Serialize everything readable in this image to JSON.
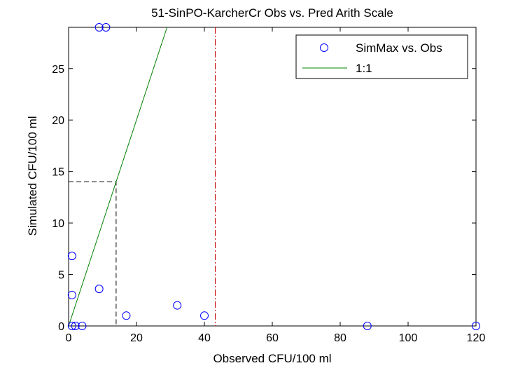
{
  "chart_data": {
    "type": "scatter",
    "title": "51-SinPO-KarcherCr Obs vs. Pred Arith Scale",
    "xlabel": "Observed CFU/100 ml",
    "ylabel": "Simulated CFU/100 ml",
    "xlim": [
      0,
      120
    ],
    "ylim": [
      0,
      29
    ],
    "xticks": [
      0,
      20,
      40,
      60,
      80,
      100,
      120
    ],
    "yticks": [
      0,
      5,
      10,
      15,
      20,
      25
    ],
    "grid": false,
    "legend_position": "top-right",
    "series": [
      {
        "name": "SimMax vs. Obs",
        "kind": "scatter",
        "marker": "circle",
        "color": "#0000ff",
        "points": [
          [
            9,
            29
          ],
          [
            11,
            29
          ],
          [
            1,
            6.8
          ],
          [
            1,
            3.0
          ],
          [
            9,
            3.6
          ],
          [
            17,
            1.0
          ],
          [
            32,
            2.0
          ],
          [
            40,
            1.0
          ],
          [
            1,
            0
          ],
          [
            2,
            0
          ],
          [
            4,
            0
          ],
          [
            88,
            0
          ],
          [
            120,
            0
          ]
        ]
      },
      {
        "name": "1:1",
        "kind": "line",
        "color": "#008000",
        "points": [
          [
            0,
            0
          ],
          [
            29,
            29
          ]
        ]
      }
    ],
    "reference_lines": [
      {
        "kind": "vertical",
        "x": 43.2,
        "style": "dash-dot",
        "color": "#cc0000"
      },
      {
        "kind": "corner",
        "x": 14,
        "y": 14,
        "style": "dashed",
        "color": "#000000"
      }
    ]
  }
}
